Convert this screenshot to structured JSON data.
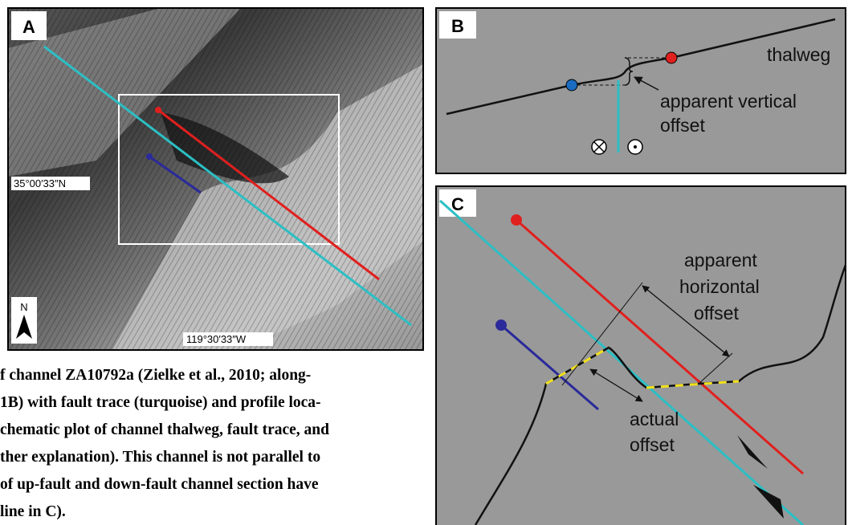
{
  "panels": {
    "A": {
      "label": "A",
      "latitude": "35°00′33″N",
      "longitude": "119°30′33″W",
      "north": "N"
    },
    "B": {
      "label": "B",
      "thalweg": "thalweg",
      "vertical_offset": [
        "apparent vertical",
        "offset"
      ]
    },
    "C": {
      "label": "C",
      "horizontal_offset": [
        "apparent",
        "horizontal",
        "offset"
      ],
      "actual_offset": [
        "actual",
        "offset"
      ]
    }
  },
  "caption": {
    "lines": [
      "f channel ZA10792a (Zielke et al., 2010; along-",
      "1B) with fault trace (turquoise) and profile loca-",
      "chematic plot of channel thalweg, fault trace, and",
      "ther explanation). This channel is not parallel to",
      "of up-fault and down-fault channel section have",
      "line in C)."
    ]
  }
}
